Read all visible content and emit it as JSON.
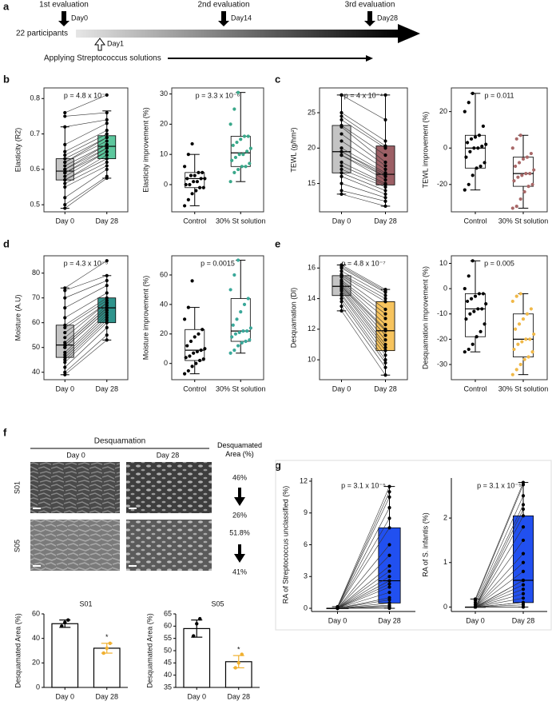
{
  "panel_labels": [
    "a",
    "b",
    "c",
    "d",
    "e",
    "f",
    "g"
  ],
  "timeline": {
    "participants": "22 participants",
    "evaluations": [
      {
        "label": "1st evaluation",
        "day": "Day0"
      },
      {
        "label": "2nd evaluation",
        "day": "Day14"
      },
      {
        "label": "3rd evaluation",
        "day": "Day28"
      }
    ],
    "start": "Day1",
    "treatment": "Applying Streptococcus solutions"
  },
  "images": {
    "title": "Desquamation",
    "columns": [
      "Day 0",
      "Day 28"
    ],
    "rows": [
      "S01",
      "S05"
    ],
    "measure_title": "Desquamated Area (%)",
    "changes": [
      [
        "46%",
        "26%"
      ],
      [
        "51.8%",
        "41%"
      ]
    ]
  },
  "chart_data": [
    {
      "type": "box",
      "paired": true,
      "frame": true,
      "title": "p = 4.8 x 10⁻⁷",
      "ylabel": "Elasticity (R2)",
      "categories": [
        "Day 0",
        "Day 28"
      ],
      "ylim": [
        0.48,
        0.83
      ],
      "yticks": [
        0.5,
        0.6,
        0.7,
        0.8
      ],
      "box_colors": [
        "#c4c4c4",
        "#5cc79d"
      ],
      "point_colors": [
        "#000000",
        "#000000"
      ],
      "boxes": [
        {
          "whislo": 0.49,
          "q1": 0.57,
          "med": 0.595,
          "q3": 0.63,
          "whishi": 0.72
        },
        {
          "whislo": 0.575,
          "q1": 0.63,
          "med": 0.665,
          "q3": 0.695,
          "whishi": 0.765
        }
      ],
      "points": [
        [
          0.49,
          0.5,
          0.52,
          0.55,
          0.56,
          0.57,
          0.57,
          0.58,
          0.59,
          0.59,
          0.6,
          0.6,
          0.61,
          0.62,
          0.62,
          0.63,
          0.64,
          0.65,
          0.67,
          0.72,
          0.75,
          0.76
        ],
        [
          0.575,
          0.58,
          0.6,
          0.61,
          0.62,
          0.63,
          0.64,
          0.65,
          0.65,
          0.66,
          0.66,
          0.67,
          0.67,
          0.68,
          0.69,
          0.69,
          0.7,
          0.71,
          0.73,
          0.74,
          0.76,
          0.81
        ]
      ]
    },
    {
      "type": "box",
      "paired": false,
      "frame": true,
      "title": "p = 3.3 x 10⁻⁶",
      "ylabel": "Elasticity improvement (%)",
      "categories": [
        "Control",
        "30% St solution"
      ],
      "ylim": [
        -9,
        32
      ],
      "yticks": [
        0,
        10,
        20,
        30
      ],
      "box_colors": [
        "#ffffff",
        "#ffffff"
      ],
      "point_colors": [
        "#000000",
        "#3aa88a"
      ],
      "boxes": [
        {
          "whislo": -7,
          "q1": -1,
          "med": 2,
          "q3": 4,
          "whishi": 10
        },
        {
          "whislo": 1,
          "q1": 6,
          "med": 10.5,
          "q3": 16,
          "whishi": 30.5
        }
      ],
      "points": [
        [
          -7,
          -5,
          -3,
          -2,
          -1,
          -1,
          0,
          0,
          1,
          1,
          2,
          2,
          2,
          3,
          3,
          4,
          4,
          6,
          10,
          13.5
        ],
        [
          1,
          4,
          5,
          6,
          6,
          7,
          8,
          9,
          10,
          10,
          11,
          12,
          13,
          14,
          15,
          16,
          16,
          20,
          25,
          30.5
        ]
      ]
    },
    {
      "type": "box",
      "paired": true,
      "frame": true,
      "title": "p = 4 x 10⁻⁴",
      "ylabel": "TEWL (g/hm²)",
      "categories": [
        "Day 0",
        "Day 28"
      ],
      "ylim": [
        11,
        28.5
      ],
      "yticks": [
        15,
        20,
        25
      ],
      "box_colors": [
        "#c4c4c4",
        "#9c5f65"
      ],
      "point_colors": [
        "#000000",
        "#000000"
      ],
      "boxes": [
        {
          "whislo": 13.5,
          "q1": 16.5,
          "med": 19.5,
          "q3": 23.2,
          "whishi": 27.5
        },
        {
          "whislo": 11.8,
          "q1": 14.8,
          "med": 16.3,
          "q3": 20.3,
          "whishi": 27.5
        }
      ],
      "points": [
        [
          13.5,
          14,
          15,
          16,
          16.5,
          17,
          17.5,
          18,
          19,
          19,
          19.5,
          19.5,
          20,
          21,
          22,
          23,
          23.2,
          24,
          24.5,
          25,
          27.5,
          27.5
        ],
        [
          11.8,
          12.5,
          13,
          13.5,
          14,
          14.5,
          14.8,
          15,
          15.5,
          16,
          16,
          16.3,
          16.5,
          17,
          17.5,
          18,
          19,
          20,
          20.3,
          21,
          24,
          27.5
        ]
      ]
    },
    {
      "type": "box",
      "paired": false,
      "frame": true,
      "title": "p = 0.011",
      "ylabel": "TEWL improvement (%)",
      "categories": [
        "Control",
        "30% St solution"
      ],
      "ylim": [
        -35,
        33
      ],
      "yticks": [
        -20,
        0,
        20
      ],
      "box_colors": [
        "#ffffff",
        "#ffffff"
      ],
      "point_colors": [
        "#000000",
        "#a86868"
      ],
      "boxes": [
        {
          "whislo": -23,
          "q1": -11,
          "med": 0,
          "q3": 7,
          "whishi": 30
        },
        {
          "whislo": -33,
          "q1": -21,
          "med": -14,
          "q3": -5,
          "whishi": 7
        }
      ],
      "points": [
        [
          -23,
          -20,
          -15,
          -11,
          -10,
          -8,
          -5,
          -2,
          0,
          0,
          1,
          2,
          3,
          5,
          6,
          7,
          12,
          20,
          25,
          30
        ],
        [
          -33,
          -32,
          -28,
          -24,
          -21,
          -20,
          -18,
          -16,
          -15,
          -14,
          -14,
          -12,
          -10,
          -8,
          -6,
          -5,
          -3,
          0,
          5,
          7
        ]
      ]
    },
    {
      "type": "box",
      "paired": true,
      "frame": true,
      "title": "p = 4.3 x 10⁻⁵",
      "ylabel": "Moisture (A.U)",
      "categories": [
        "Day 0",
        "Day 28"
      ],
      "ylim": [
        37,
        87
      ],
      "yticks": [
        40,
        50,
        60,
        70,
        80
      ],
      "box_colors": [
        "#c4c4c4",
        "#2e948c"
      ],
      "point_colors": [
        "#000000",
        "#000000"
      ],
      "boxes": [
        {
          "whislo": 39,
          "q1": 46,
          "med": 51,
          "q3": 59,
          "whishi": 74
        },
        {
          "whislo": 53,
          "q1": 60,
          "med": 66,
          "q3": 70,
          "whishi": 79
        }
      ],
      "points": [
        [
          39,
          40,
          42,
          44,
          45,
          46,
          47,
          48,
          50,
          50,
          51,
          51,
          52,
          54,
          56,
          58,
          59,
          62,
          66,
          70,
          73,
          74
        ],
        [
          53,
          55,
          58,
          60,
          61,
          62,
          63,
          64,
          65,
          65,
          66,
          66,
          67,
          68,
          68,
          69,
          70,
          72,
          75,
          77,
          79,
          85
        ]
      ]
    },
    {
      "type": "box",
      "paired": false,
      "frame": true,
      "title": "p = 0.0015",
      "ylabel": "Moisture improvement (%)",
      "categories": [
        "Control",
        "30% St solution"
      ],
      "ylim": [
        -11,
        73
      ],
      "yticks": [
        0,
        20,
        40,
        60
      ],
      "box_colors": [
        "#ffffff",
        "#ffffff"
      ],
      "point_colors": [
        "#000000",
        "#3aa89a"
      ],
      "boxes": [
        {
          "whislo": -7,
          "q1": 2,
          "med": 9,
          "q3": 23,
          "whishi": 38
        },
        {
          "whislo": 7,
          "q1": 15,
          "med": 22,
          "q3": 44,
          "whishi": 70
        }
      ],
      "points": [
        [
          -7,
          -5,
          -2,
          0,
          2,
          3,
          4,
          5,
          7,
          8,
          9,
          10,
          12,
          15,
          18,
          20,
          23,
          30,
          38,
          56
        ],
        [
          7,
          9,
          12,
          14,
          15,
          16,
          18,
          20,
          21,
          22,
          22,
          24,
          26,
          30,
          35,
          40,
          44,
          50,
          60,
          70
        ]
      ]
    },
    {
      "type": "box",
      "paired": true,
      "frame": true,
      "title": "p = 4.8 x 10⁻⁷",
      "ylabel": "Desquamation (DI)",
      "categories": [
        "Day 0",
        "Day 28"
      ],
      "ylim": [
        8.7,
        16.8
      ],
      "yticks": [
        10,
        12,
        14,
        16
      ],
      "box_colors": [
        "#c4c4c4",
        "#f7c45e"
      ],
      "point_colors": [
        "#000000",
        "#000000"
      ],
      "boxes": [
        {
          "whislo": 13.2,
          "q1": 14.2,
          "med": 14.8,
          "q3": 15.5,
          "whishi": 16.2
        },
        {
          "whislo": 9,
          "q1": 10.6,
          "med": 11.9,
          "q3": 13.8,
          "whishi": 14.6
        }
      ],
      "points": [
        [
          13.2,
          13.5,
          13.8,
          14,
          14.2,
          14.3,
          14.5,
          14.6,
          14.7,
          14.8,
          14.8,
          14.9,
          15,
          15.1,
          15.2,
          15.4,
          15.5,
          15.6,
          15.8,
          16,
          16.1,
          16.2
        ],
        [
          9,
          9.5,
          9.8,
          10,
          10.3,
          10.6,
          10.8,
          11,
          11.3,
          11.6,
          11.9,
          12,
          12.3,
          12.7,
          13,
          13.3,
          13.8,
          14,
          14.2,
          14.4,
          14.5,
          14.6
        ]
      ]
    },
    {
      "type": "box",
      "paired": false,
      "frame": true,
      "title": "p = 0.005",
      "ylabel": "Desquamation improvement (%)",
      "categories": [
        "Control",
        "30% St solution"
      ],
      "ylim": [
        -36,
        13
      ],
      "yticks": [
        -30,
        -20,
        -10,
        0,
        10
      ],
      "box_colors": [
        "#ffffff",
        "#ffffff"
      ],
      "point_colors": [
        "#000000",
        "#f0b848"
      ],
      "boxes": [
        {
          "whislo": -25,
          "q1": -19,
          "med": -8,
          "q3": -2,
          "whishi": 11
        },
        {
          "whislo": -34,
          "q1": -27,
          "med": -20,
          "q3": -10,
          "whishi": -2
        }
      ],
      "points": [
        [
          -25,
          -24,
          -22,
          -19,
          -17,
          -14,
          -12,
          -10,
          -9,
          -8,
          -8,
          -6,
          -5,
          -4,
          -3,
          -2,
          -2,
          0,
          5,
          11
        ],
        [
          -34,
          -32,
          -30,
          -28,
          -27,
          -25,
          -24,
          -22,
          -21,
          -20,
          -20,
          -18,
          -16,
          -14,
          -12,
          -10,
          -8,
          -5,
          -3,
          -2
        ]
      ]
    },
    {
      "type": "bar",
      "frame": false,
      "title": "S01",
      "ylabel": "Desquamated Area (%)",
      "categories": [
        "Day 0",
        "Day 28"
      ],
      "ylim": [
        0,
        60
      ],
      "yticks": [
        0,
        20,
        40,
        60
      ],
      "values": [
        52,
        32
      ],
      "errors": [
        3,
        4
      ],
      "point_colors": [
        "#000000",
        "#f0b030"
      ],
      "points": [
        [
          50,
          53,
          55
        ],
        [
          28,
          32,
          36
        ]
      ],
      "significance": {
        "category": 1,
        "label": "*"
      }
    },
    {
      "type": "bar",
      "frame": false,
      "title": "S05",
      "ylabel": "Desquamated Area (%)",
      "categories": [
        "Day 0",
        "Day 28"
      ],
      "ylim": [
        35,
        65
      ],
      "yticks": [
        35,
        40,
        45,
        50,
        55,
        60,
        65
      ],
      "values": [
        59,
        45.5
      ],
      "errors": [
        3.5,
        2.5
      ],
      "point_colors": [
        "#000000",
        "#f0b030"
      ],
      "points": [
        [
          56,
          61,
          63
        ],
        [
          43,
          45,
          48.5
        ]
      ],
      "significance": {
        "category": 1,
        "label": "*"
      }
    },
    {
      "type": "box",
      "paired": true,
      "frame": false,
      "title": "p = 3.1 x 10⁻⁵",
      "ylabel": "RA of Streptococcus unclassified (%)",
      "categories": [
        "Day 0",
        "Day 28"
      ],
      "ylim": [
        -0.3,
        12.3
      ],
      "yticks": [
        0,
        3,
        6,
        9,
        12
      ],
      "box_colors": [
        "#ffffff",
        "#2150f0"
      ],
      "point_colors": [
        "#000000",
        "#000000"
      ],
      "boxes": [
        {
          "whislo": 0,
          "q1": 0,
          "med": 0,
          "q3": 0,
          "whishi": 0.15
        },
        {
          "whislo": 0,
          "q1": 0.5,
          "med": 2.6,
          "q3": 7.6,
          "whishi": 11.5
        }
      ],
      "points": [
        [
          0,
          0,
          0,
          0,
          0,
          0,
          0,
          0,
          0,
          0,
          0,
          0,
          0,
          0,
          0,
          0,
          0.05,
          0.05,
          0.1,
          0.1,
          0.1,
          0.15
        ],
        [
          0,
          0.1,
          0.2,
          0.3,
          0.5,
          0.8,
          1,
          1.5,
          2,
          2.3,
          2.6,
          3,
          3.5,
          4,
          5,
          6,
          7.6,
          8.5,
          9.5,
          10.5,
          11,
          11.5
        ]
      ]
    },
    {
      "type": "box",
      "paired": true,
      "frame": false,
      "title": "p = 3.1 x 10⁻⁵",
      "ylabel": "RA of S. infantis (%)",
      "categories": [
        "Day 0",
        "Day 28"
      ],
      "ylim": [
        -0.1,
        2.9
      ],
      "yticks": [
        0,
        1,
        2
      ],
      "box_colors": [
        "#ffffff",
        "#2150f0"
      ],
      "point_colors": [
        "#000000",
        "#000000"
      ],
      "boxes": [
        {
          "whislo": 0,
          "q1": 0,
          "med": 0,
          "q3": 0,
          "whishi": 0.18
        },
        {
          "whislo": 0,
          "q1": 0.1,
          "med": 0.6,
          "q3": 2.05,
          "whishi": 2.8
        }
      ],
      "points": [
        [
          0,
          0,
          0,
          0,
          0,
          0,
          0,
          0,
          0,
          0,
          0,
          0,
          0,
          0,
          0,
          0,
          0,
          0,
          0.05,
          0.1,
          0.15,
          0.18
        ],
        [
          0,
          0,
          0.05,
          0.1,
          0.1,
          0.2,
          0.3,
          0.4,
          0.5,
          0.6,
          0.6,
          0.8,
          1,
          1.2,
          1.5,
          1.8,
          2.05,
          2.2,
          2.3,
          2.5,
          2.75,
          2.8
        ]
      ]
    }
  ]
}
